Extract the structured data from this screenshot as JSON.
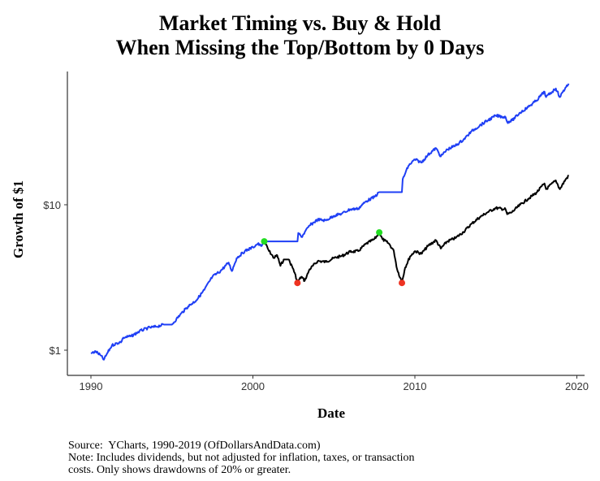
{
  "chart_data": {
    "type": "line",
    "title": [
      "Market Timing vs. Buy & Hold",
      "When Missing the Top/Bottom by 0 Days"
    ],
    "xlabel": "Date",
    "ylabel": "Growth of $1",
    "xlim": [
      1989.2,
      2020.5
    ],
    "ylim": [
      0.7,
      90
    ],
    "yscale": "log",
    "xticks": [
      1990,
      2000,
      2010,
      2020
    ],
    "xtick_labels": [
      "1990",
      "2000",
      "2010",
      "2020"
    ],
    "yticks": [
      1,
      10
    ],
    "ytick_labels": [
      "$1",
      "$10"
    ],
    "grid": false,
    "series": [
      {
        "name": "Market Timing",
        "color": "#1f3ff5",
        "points": [
          [
            1990.0,
            0.95
          ],
          [
            1990.3,
            0.98
          ],
          [
            1990.6,
            0.92
          ],
          [
            1990.8,
            0.86
          ],
          [
            1991.0,
            0.95
          ],
          [
            1991.3,
            1.08
          ],
          [
            1991.9,
            1.15
          ],
          [
            1992.0,
            1.22
          ],
          [
            1992.5,
            1.25
          ],
          [
            1993.0,
            1.35
          ],
          [
            1993.5,
            1.42
          ],
          [
            1994.0,
            1.45
          ],
          [
            1994.5,
            1.5
          ],
          [
            1995.0,
            1.5
          ],
          [
            1995.5,
            1.75
          ],
          [
            1996.0,
            2.0
          ],
          [
            1996.5,
            2.2
          ],
          [
            1997.0,
            2.6
          ],
          [
            1997.5,
            3.2
          ],
          [
            1998.0,
            3.5
          ],
          [
            1998.5,
            4.0
          ],
          [
            1998.7,
            3.5
          ],
          [
            1999.0,
            4.3
          ],
          [
            1999.5,
            4.8
          ],
          [
            2000.0,
            5.1
          ],
          [
            2000.3,
            5.4
          ],
          [
            2000.5,
            5.2
          ],
          [
            2000.7,
            5.6
          ],
          [
            2002.75,
            5.6
          ],
          [
            2002.8,
            6.4
          ],
          [
            2003.0,
            6.0
          ],
          [
            2003.5,
            7.2
          ],
          [
            2004.0,
            7.9
          ],
          [
            2004.5,
            7.8
          ],
          [
            2005.0,
            8.4
          ],
          [
            2005.5,
            8.7
          ],
          [
            2006.0,
            9.3
          ],
          [
            2006.5,
            9.4
          ],
          [
            2007.0,
            10.6
          ],
          [
            2007.5,
            11.3
          ],
          [
            2007.8,
            12.2
          ],
          [
            2009.2,
            12.2
          ],
          [
            2009.25,
            15.0
          ],
          [
            2009.6,
            18.5
          ],
          [
            2010.0,
            20.5
          ],
          [
            2010.4,
            19.5
          ],
          [
            2010.8,
            22.0
          ],
          [
            2011.3,
            24.5
          ],
          [
            2011.6,
            21.5
          ],
          [
            2012.0,
            24.0
          ],
          [
            2012.5,
            25.5
          ],
          [
            2013.0,
            28.0
          ],
          [
            2013.5,
            32.0
          ],
          [
            2014.0,
            35.0
          ],
          [
            2014.5,
            38.0
          ],
          [
            2015.0,
            41.0
          ],
          [
            2015.6,
            40.0
          ],
          [
            2015.7,
            37.0
          ],
          [
            2016.0,
            38.0
          ],
          [
            2016.5,
            43.0
          ],
          [
            2017.0,
            47.0
          ],
          [
            2017.5,
            52.0
          ],
          [
            2018.0,
            60.0
          ],
          [
            2018.1,
            55.0
          ],
          [
            2018.7,
            63.0
          ],
          [
            2018.95,
            55.0
          ],
          [
            2019.3,
            64.0
          ],
          [
            2019.5,
            68.0
          ]
        ]
      },
      {
        "name": "Buy & Hold",
        "color": "#000000",
        "points": [
          [
            2000.7,
            5.6
          ],
          [
            2001.0,
            4.8
          ],
          [
            2001.3,
            4.3
          ],
          [
            2001.5,
            4.5
          ],
          [
            2001.7,
            3.8
          ],
          [
            2001.9,
            4.2
          ],
          [
            2002.2,
            4.2
          ],
          [
            2002.5,
            3.6
          ],
          [
            2002.75,
            2.95
          ],
          [
            2003.0,
            3.2
          ],
          [
            2003.2,
            3.0
          ],
          [
            2003.5,
            3.6
          ],
          [
            2004.0,
            4.1
          ],
          [
            2004.5,
            4.05
          ],
          [
            2005.0,
            4.3
          ],
          [
            2005.5,
            4.45
          ],
          [
            2006.0,
            4.75
          ],
          [
            2006.5,
            4.8
          ],
          [
            2007.0,
            5.4
          ],
          [
            2007.5,
            5.8
          ],
          [
            2007.8,
            6.4
          ],
          [
            2008.0,
            5.8
          ],
          [
            2008.4,
            5.4
          ],
          [
            2008.7,
            4.8
          ],
          [
            2008.9,
            3.6
          ],
          [
            2009.2,
            2.95
          ],
          [
            2009.4,
            3.7
          ],
          [
            2009.7,
            4.4
          ],
          [
            2010.0,
            4.8
          ],
          [
            2010.4,
            4.6
          ],
          [
            2010.8,
            5.2
          ],
          [
            2011.3,
            5.7
          ],
          [
            2011.6,
            5.0
          ],
          [
            2012.0,
            5.6
          ],
          [
            2012.5,
            5.9
          ],
          [
            2013.0,
            6.5
          ],
          [
            2013.5,
            7.4
          ],
          [
            2014.0,
            8.2
          ],
          [
            2014.5,
            8.9
          ],
          [
            2015.0,
            9.5
          ],
          [
            2015.6,
            9.3
          ],
          [
            2015.7,
            8.6
          ],
          [
            2016.0,
            8.9
          ],
          [
            2016.5,
            10.0
          ],
          [
            2017.0,
            11.0
          ],
          [
            2017.5,
            12.1
          ],
          [
            2018.0,
            14.0
          ],
          [
            2018.1,
            12.8
          ],
          [
            2018.7,
            14.7
          ],
          [
            2018.95,
            12.8
          ],
          [
            2019.3,
            14.9
          ],
          [
            2019.5,
            15.8
          ]
        ]
      }
    ],
    "markers": [
      {
        "type": "top",
        "color": "#22dd22",
        "x": 2000.7,
        "y": 5.6
      },
      {
        "type": "bottom",
        "color": "#ee3322",
        "x": 2002.75,
        "y": 2.9
      },
      {
        "type": "top",
        "color": "#22dd22",
        "x": 2007.8,
        "y": 6.45
      },
      {
        "type": "bottom",
        "color": "#ee3322",
        "x": 2009.2,
        "y": 2.9
      }
    ]
  },
  "notes": {
    "source": "Source:  YCharts, 1990-2019 (OfDollarsAndData.com)",
    "note1": "Note: Includes dividends, but not adjusted for inflation, taxes, or transaction",
    "note2": "costs. Only shows drawdowns of 20% or greater."
  }
}
